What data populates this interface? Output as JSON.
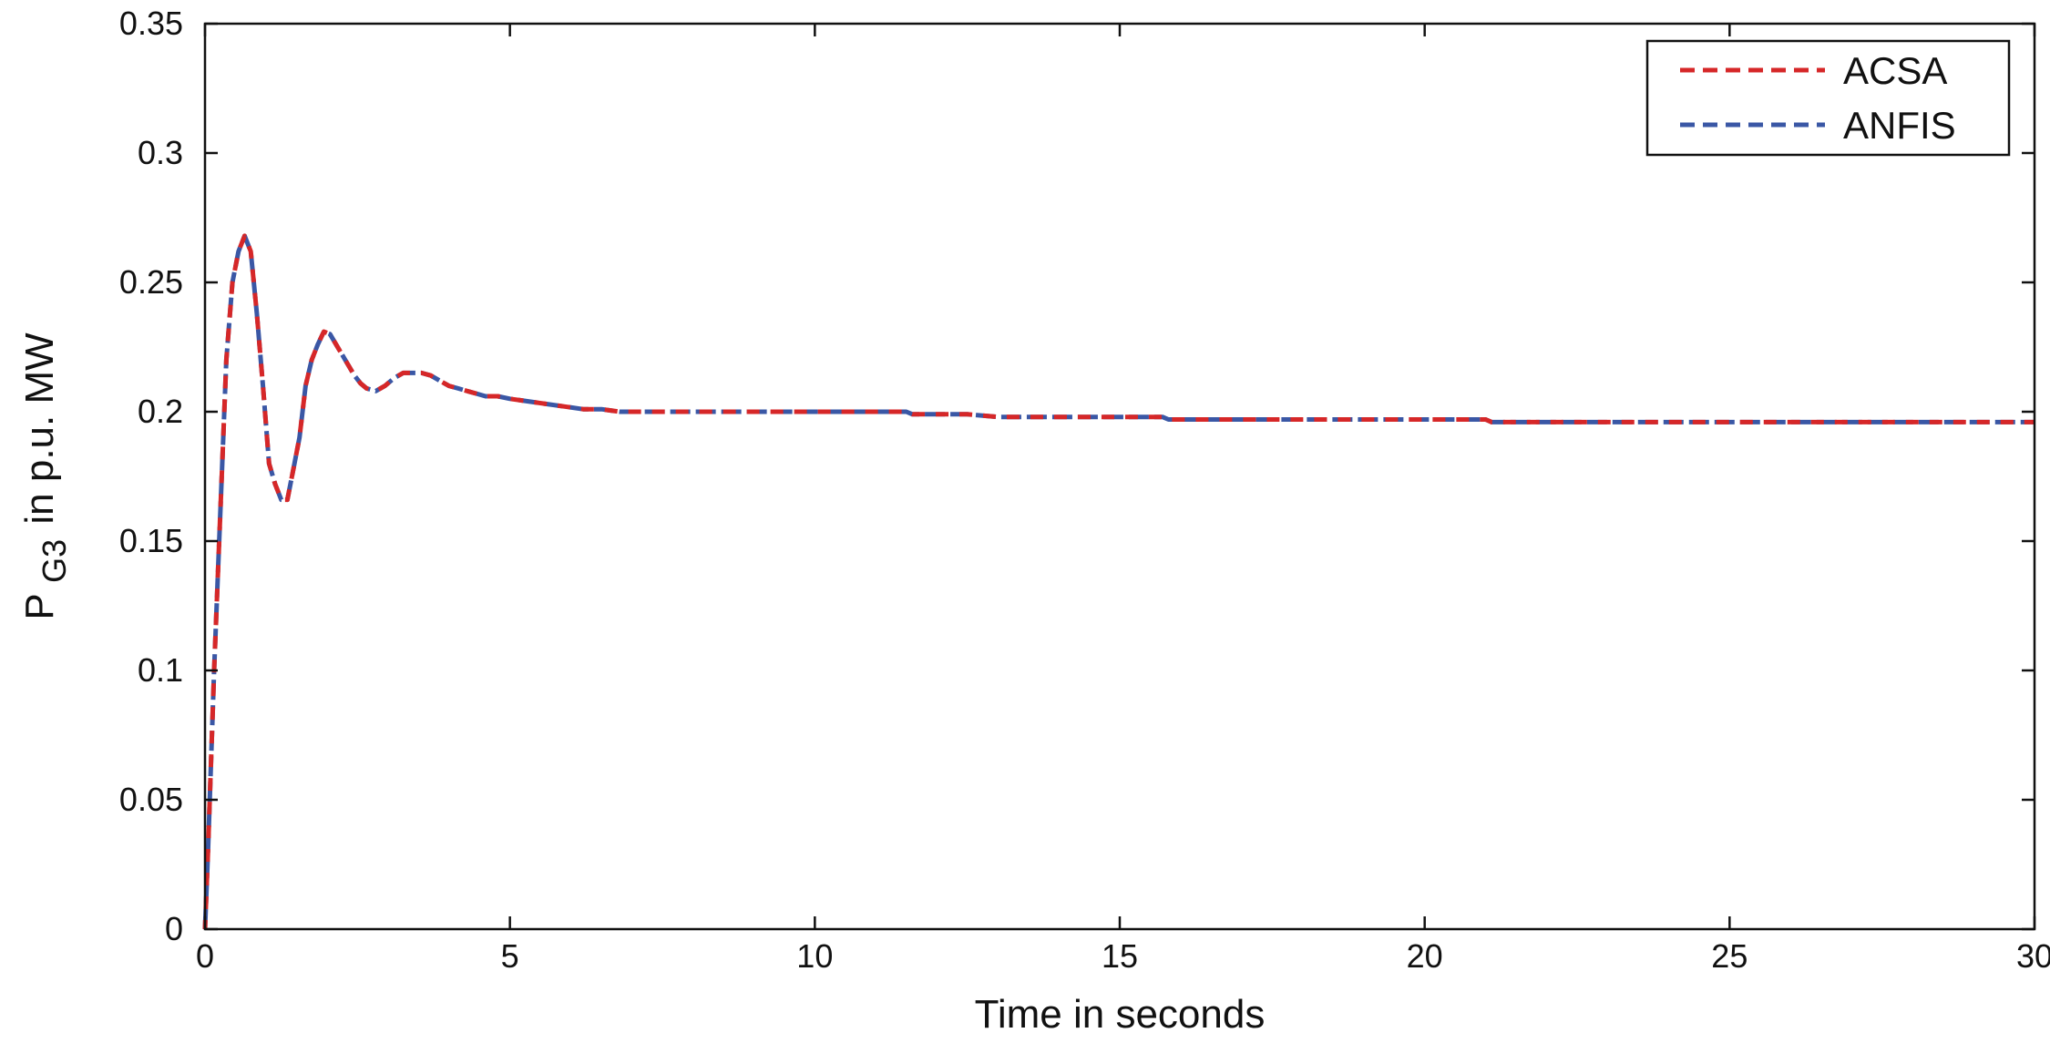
{
  "chart_data": {
    "type": "line",
    "title": "",
    "xlabel": "Time in seconds",
    "ylabel": {
      "main": "P",
      "subscript": "G3",
      "rest": "in p.u. MW"
    },
    "xlim": [
      0,
      30
    ],
    "ylim": [
      0,
      0.35
    ],
    "xticks": [
      0,
      5,
      10,
      15,
      20,
      25,
      30
    ],
    "xtick_labels": [
      "0",
      "5",
      "10",
      "15",
      "20",
      "25",
      "30"
    ],
    "yticks": [
      0,
      0.05,
      0.1,
      0.15,
      0.2,
      0.25,
      0.3,
      0.35
    ],
    "ytick_labels": [
      "0",
      "0.05",
      "0.1",
      "0.15",
      "0.2",
      "0.25",
      "0.3",
      "0.35"
    ],
    "grid": false,
    "legend_position": "top-right",
    "series": [
      {
        "name": "ACSA",
        "color": "#d62728",
        "style": "dashed",
        "x": [
          0,
          0.05,
          0.15,
          0.25,
          0.35,
          0.45,
          0.55,
          0.65,
          0.75,
          0.85,
          0.95,
          1.05,
          1.15,
          1.25,
          1.35,
          1.45,
          1.55,
          1.65,
          1.75,
          1.85,
          1.95,
          2.05,
          2.15,
          2.25,
          2.35,
          2.45,
          2.55,
          2.65,
          2.8,
          2.95,
          3.1,
          3.25,
          3.4,
          3.55,
          3.7,
          3.85,
          4.0,
          4.15,
          4.3,
          4.45,
          4.6,
          4.8,
          5.0,
          5.3,
          5.6,
          5.9,
          6.2,
          6.5,
          6.8,
          7.0,
          8.0,
          9.0,
          10.0,
          11.0,
          11.5,
          11.6,
          12.5,
          13.0,
          14.0,
          15.0,
          15.7,
          15.8,
          17.0,
          18.0,
          19.0,
          20.0,
          21.0,
          21.1,
          22.0,
          24.0,
          26.0,
          28.0,
          30.0
        ],
        "values": [
          0,
          0.03,
          0.1,
          0.16,
          0.22,
          0.25,
          0.262,
          0.268,
          0.262,
          0.238,
          0.21,
          0.18,
          0.172,
          0.166,
          0.166,
          0.178,
          0.19,
          0.21,
          0.22,
          0.226,
          0.231,
          0.23,
          0.226,
          0.222,
          0.218,
          0.214,
          0.211,
          0.209,
          0.208,
          0.21,
          0.213,
          0.215,
          0.215,
          0.215,
          0.214,
          0.212,
          0.21,
          0.209,
          0.208,
          0.207,
          0.206,
          0.206,
          0.205,
          0.204,
          0.203,
          0.202,
          0.201,
          0.201,
          0.2,
          0.2,
          0.2,
          0.2,
          0.2,
          0.2,
          0.2,
          0.199,
          0.199,
          0.198,
          0.198,
          0.198,
          0.198,
          0.197,
          0.197,
          0.197,
          0.197,
          0.197,
          0.197,
          0.196,
          0.196,
          0.196,
          0.196,
          0.196,
          0.196
        ]
      },
      {
        "name": "ANFIS",
        "color": "#3a57a5",
        "style": "dashed",
        "x": [
          0,
          0.05,
          0.15,
          0.25,
          0.35,
          0.45,
          0.55,
          0.65,
          0.75,
          0.85,
          0.95,
          1.05,
          1.15,
          1.25,
          1.35,
          1.45,
          1.55,
          1.65,
          1.75,
          1.85,
          1.95,
          2.05,
          2.15,
          2.25,
          2.35,
          2.45,
          2.55,
          2.65,
          2.8,
          2.95,
          3.1,
          3.25,
          3.4,
          3.55,
          3.7,
          3.85,
          4.0,
          4.15,
          4.3,
          4.45,
          4.6,
          4.8,
          5.0,
          5.3,
          5.6,
          5.9,
          6.2,
          6.5,
          6.8,
          7.0,
          8.0,
          9.0,
          10.0,
          11.0,
          11.5,
          11.6,
          12.5,
          13.0,
          14.0,
          15.0,
          15.7,
          15.8,
          17.0,
          18.0,
          19.0,
          20.0,
          21.0,
          21.1,
          22.0,
          24.0,
          26.0,
          28.0,
          30.0
        ],
        "values": [
          0,
          0.03,
          0.1,
          0.16,
          0.22,
          0.25,
          0.262,
          0.268,
          0.262,
          0.238,
          0.21,
          0.18,
          0.172,
          0.166,
          0.166,
          0.178,
          0.19,
          0.21,
          0.22,
          0.226,
          0.231,
          0.23,
          0.226,
          0.222,
          0.218,
          0.214,
          0.211,
          0.209,
          0.208,
          0.21,
          0.213,
          0.215,
          0.215,
          0.215,
          0.214,
          0.212,
          0.21,
          0.209,
          0.208,
          0.207,
          0.206,
          0.206,
          0.205,
          0.204,
          0.203,
          0.202,
          0.201,
          0.201,
          0.2,
          0.2,
          0.2,
          0.2,
          0.2,
          0.2,
          0.2,
          0.199,
          0.199,
          0.198,
          0.198,
          0.198,
          0.198,
          0.197,
          0.197,
          0.197,
          0.197,
          0.197,
          0.197,
          0.196,
          0.196,
          0.196,
          0.196,
          0.196,
          0.196
        ]
      }
    ]
  }
}
